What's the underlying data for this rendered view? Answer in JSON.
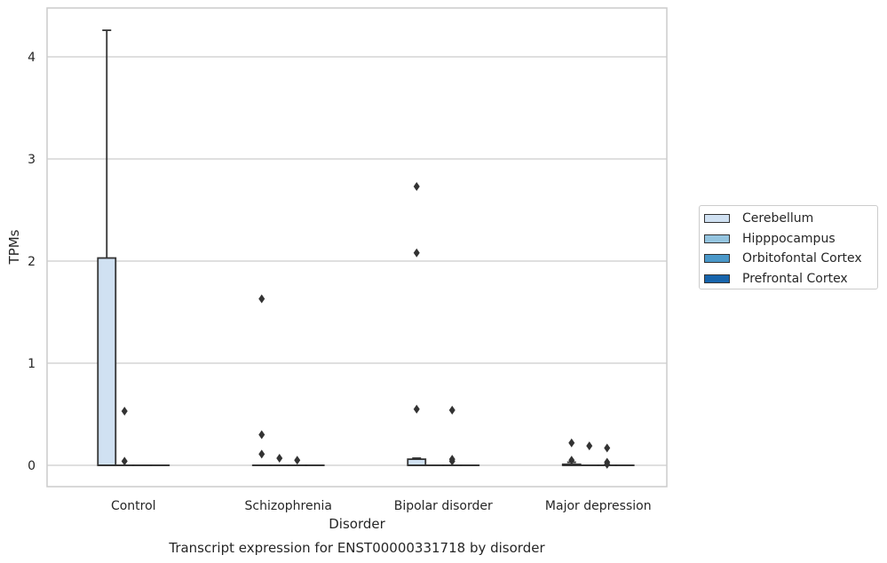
{
  "chart_data": {
    "type": "box",
    "title": "Transcript expression for ENST00000331718 by disorder",
    "xlabel": "Disorder",
    "ylabel": "TPMs",
    "ylim": [
      -0.2,
      4.48
    ],
    "yticks": [
      0,
      1,
      2,
      3,
      4
    ],
    "categories": [
      "Control",
      "Schizophrenia",
      "Bipolar disorder",
      "Major depression"
    ],
    "grid": true,
    "legend_position": "right",
    "series": [
      {
        "name": "Cerebellum",
        "color": "#d0e1f2",
        "boxes": [
          {
            "q1": 0,
            "median": 0,
            "q3": 2.03,
            "whisker_low": 0,
            "whisker_high": 4.26,
            "outliers": []
          },
          {
            "q1": 0,
            "median": 0,
            "q3": 0,
            "whisker_low": 0,
            "whisker_high": 0,
            "outliers": [
              0.3,
              1.63,
              0.11
            ]
          },
          {
            "q1": 0,
            "median": 0,
            "q3": 0.06,
            "whisker_low": 0,
            "whisker_high": 0.07,
            "outliers": [
              0.55,
              2.08,
              2.73
            ]
          },
          {
            "q1": 0,
            "median": 0,
            "q3": 0.01,
            "whisker_low": 0,
            "whisker_high": 0.03,
            "outliers": [
              0.05,
              0.22
            ]
          }
        ]
      },
      {
        "name": "Hipppocampus",
        "color": "#94c4df",
        "boxes": [
          {
            "q1": 0,
            "median": 0,
            "q3": 0,
            "whisker_low": 0,
            "whisker_high": 0,
            "outliers": [
              0.53,
              0.04
            ]
          },
          {
            "q1": 0,
            "median": 0,
            "q3": 0,
            "whisker_low": 0,
            "whisker_high": 0,
            "outliers": [
              0.07
            ]
          },
          {
            "q1": 0,
            "median": 0,
            "q3": 0,
            "whisker_low": 0,
            "whisker_high": 0,
            "outliers": []
          },
          {
            "q1": 0,
            "median": 0,
            "q3": 0,
            "whisker_low": 0,
            "whisker_high": 0,
            "outliers": [
              0.19
            ]
          }
        ]
      },
      {
        "name": "Orbitofontal Cortex",
        "color": "#4a98c9",
        "boxes": [
          {
            "q1": 0,
            "median": 0,
            "q3": 0,
            "whisker_low": 0,
            "whisker_high": 0,
            "outliers": []
          },
          {
            "q1": 0,
            "median": 0,
            "q3": 0,
            "whisker_low": 0,
            "whisker_high": 0,
            "outliers": [
              0.05
            ]
          },
          {
            "q1": 0,
            "median": 0,
            "q3": 0,
            "whisker_low": 0,
            "whisker_high": 0,
            "outliers": [
              0.54,
              0.06,
              0.04
            ]
          },
          {
            "q1": 0,
            "median": 0,
            "q3": 0,
            "whisker_low": 0,
            "whisker_high": 0,
            "outliers": [
              0.17,
              0.03,
              0.01
            ]
          }
        ]
      },
      {
        "name": "Prefrontal Cortex",
        "color": "#1764ab",
        "boxes": [
          {
            "q1": 0,
            "median": 0,
            "q3": 0,
            "whisker_low": 0,
            "whisker_high": 0,
            "outliers": []
          },
          {
            "q1": 0,
            "median": 0,
            "q3": 0,
            "whisker_low": 0,
            "whisker_high": 0,
            "outliers": []
          },
          {
            "q1": 0,
            "median": 0,
            "q3": 0,
            "whisker_low": 0,
            "whisker_high": 0,
            "outliers": []
          },
          {
            "q1": 0,
            "median": 0,
            "q3": 0,
            "whisker_low": 0,
            "whisker_high": 0,
            "outliers": []
          }
        ]
      }
    ]
  }
}
